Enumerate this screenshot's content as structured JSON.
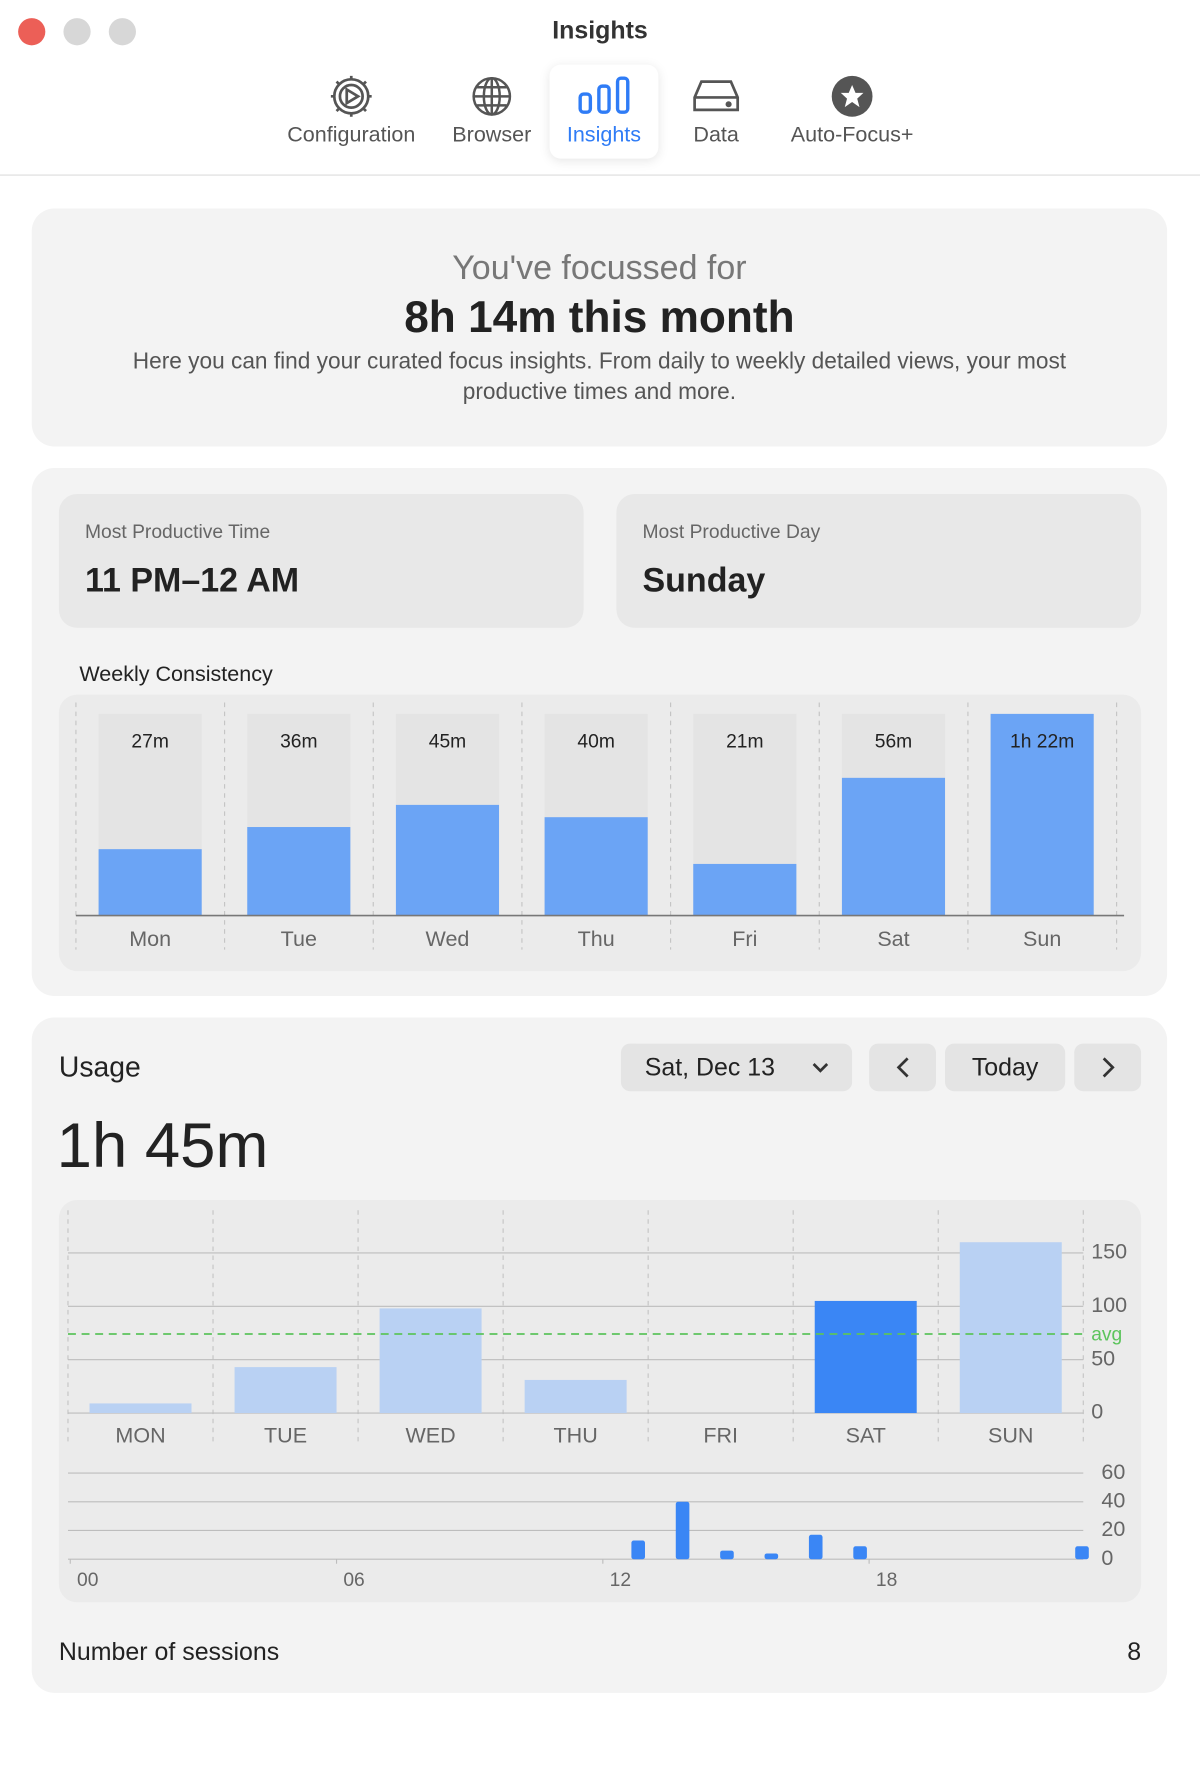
{
  "window": {
    "title": "Insights"
  },
  "tabs": [
    "Configuration",
    "Browser",
    "Insights",
    "Data",
    "Auto-Focus+"
  ],
  "summary": {
    "intro": "You've focussed for",
    "headline": "8h 14m this month",
    "description": "Here you can find your curated focus insights. From daily to weekly detailed views, your most productive times and more."
  },
  "stats": [
    {
      "label": "Most Productive Time",
      "value": "11 PM–12 AM"
    },
    {
      "label": "Most Productive Day",
      "value": "Sunday"
    }
  ],
  "usage": {
    "title": "Usage",
    "date": "Sat, Dec 13",
    "today_button": "Today",
    "total": "1h 45m",
    "sessions_label": "Number of sessions",
    "sessions": 8
  },
  "chart_data": [
    {
      "type": "bar",
      "title": "Weekly Consistency",
      "categories": [
        "Mon",
        "Tue",
        "Wed",
        "Thu",
        "Fri",
        "Sat",
        "Sun"
      ],
      "values": [
        27,
        36,
        45,
        40,
        21,
        56,
        82
      ],
      "value_labels": [
        "27m",
        "36m",
        "45m",
        "40m",
        "21m",
        "56m",
        "1h 22m"
      ],
      "color": "#6ba4f5",
      "track_color": "#e4e4e4"
    },
    {
      "type": "bar",
      "categories": [
        "MON",
        "TUE",
        "WED",
        "THU",
        "FRI",
        "SAT",
        "SUN"
      ],
      "values": [
        9,
        43,
        98,
        31,
        0,
        105,
        160
      ],
      "colors": [
        "#b9d1f3",
        "#b9d1f3",
        "#b9d1f3",
        "#b9d1f3",
        "#b9d1f3",
        "#3a86f5",
        "#b9d1f3"
      ],
      "ylim": [
        0,
        190
      ],
      "yticks": [
        0,
        50,
        100,
        150
      ],
      "grid": true,
      "reference_line": {
        "value": 74,
        "label": "avg",
        "color": "#5cc45c"
      }
    },
    {
      "type": "bar",
      "x": [
        12,
        13,
        14,
        15,
        16,
        17,
        22
      ],
      "values": [
        13,
        40,
        6,
        4,
        17,
        9,
        9
      ],
      "color": "#3a86f5",
      "xlim": [
        0,
        24
      ],
      "xticks": [
        {
          "value": 0,
          "label": "00"
        },
        {
          "value": 6,
          "label": "06"
        },
        {
          "value": 12,
          "label": "12"
        },
        {
          "value": 18,
          "label": "18"
        }
      ],
      "ylim": [
        0,
        60
      ],
      "yticks": [
        0,
        20,
        40,
        60
      ],
      "grid": true
    }
  ]
}
